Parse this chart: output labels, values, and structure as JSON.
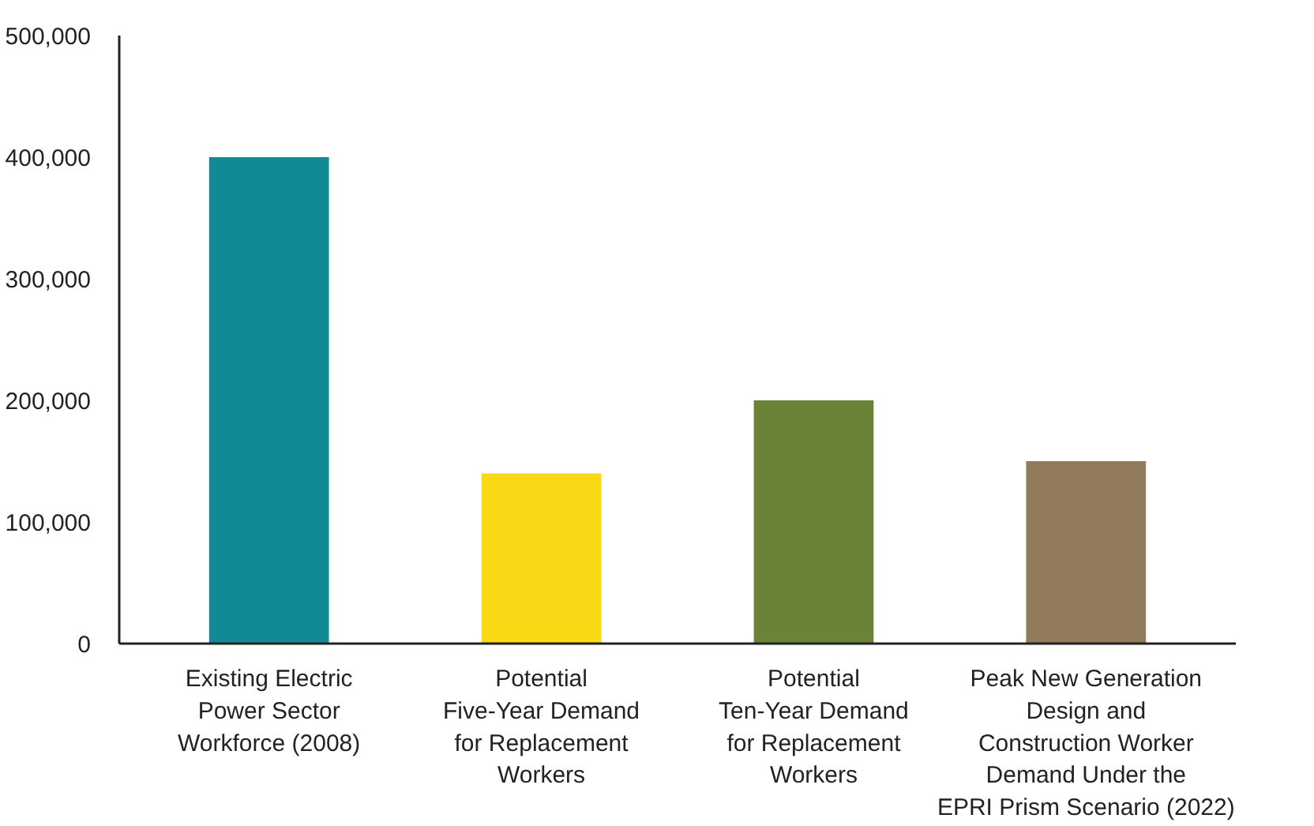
{
  "chart_data": {
    "type": "bar",
    "categories": [
      "Existing Electric\nPower Sector\nWorkforce (2008)",
      "Potential\nFive-Year Demand\nfor Replacement\nWorkers",
      "Potential\nTen-Year Demand\nfor Replacement\nWorkers",
      "Peak New Generation\nDesign and\nConstruction Worker\nDemand Under the\nEPRI Prism Scenario (2022)"
    ],
    "values": [
      400000,
      140000,
      200000,
      150000
    ],
    "colors": [
      "#118a96",
      "#f8d916",
      "#6a8337",
      "#917b5a"
    ],
    "ylim": [
      0,
      500000
    ],
    "yticks": [
      {
        "value": 0,
        "label": "0"
      },
      {
        "value": 100000,
        "label": "100,000"
      },
      {
        "value": 200000,
        "label": "200,000"
      },
      {
        "value": 300000,
        "label": "300,000"
      },
      {
        "value": 400000,
        "label": "400,000"
      },
      {
        "value": 500000,
        "label": "500,000"
      }
    ],
    "grid": false
  }
}
